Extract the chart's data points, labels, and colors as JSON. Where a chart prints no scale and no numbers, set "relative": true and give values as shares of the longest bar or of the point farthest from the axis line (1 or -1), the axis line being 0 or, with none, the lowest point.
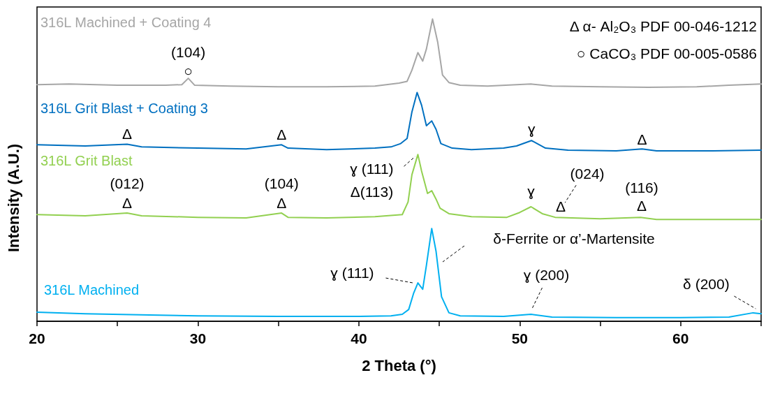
{
  "chart_data": {
    "type": "line",
    "relative": true,
    "marker": "none",
    "xlabel": "2 Theta (°)",
    "ylabel": "Intensity (A.U.)",
    "xlim": [
      20,
      65
    ],
    "xticks": [
      20,
      {
        "value": 25,
        "label": null
      },
      30,
      {
        "value": 35,
        "label": null
      },
      40,
      {
        "value": 45,
        "label": null
      },
      50,
      {
        "value": 55,
        "label": null
      },
      60,
      {
        "value": 65,
        "label": null
      }
    ],
    "series": [
      {
        "name": "316L Machined + Coating 4",
        "color": "#a6a6a6",
        "x": [
          20,
          22,
          25,
          28,
          29,
          29.4,
          29.8,
          32,
          35,
          38,
          41,
          42.5,
          43,
          43.3,
          43.67,
          43.97,
          44.2,
          44.58,
          44.9,
          45.2,
          45.6,
          46.3,
          48,
          50.7,
          52,
          55,
          58,
          61,
          63,
          65
        ],
        "values": [
          0.783,
          0.785,
          0.781,
          0.781,
          0.783,
          0.804,
          0.781,
          0.778,
          0.776,
          0.776,
          0.778,
          0.788,
          0.794,
          0.831,
          0.889,
          0.861,
          0.901,
          1,
          0.924,
          0.815,
          0.79,
          0.781,
          0.778,
          0.785,
          0.778,
          0.776,
          0.774,
          0.776,
          0.781,
          0.785
        ]
      },
      {
        "name": "316L Grit Blast + Coating 3",
        "color": "#0070c0",
        "x": [
          20,
          23,
          25.6,
          26.5,
          30,
          33,
          35.2,
          35.6,
          38,
          41,
          42,
          42.6,
          43,
          43.3,
          43.62,
          43.9,
          44.2,
          44.53,
          44.8,
          45.1,
          45.8,
          47,
          49,
          49.8,
          50.73,
          51.6,
          53,
          56,
          57.6,
          58.5,
          62,
          65
        ],
        "values": [
          0.584,
          0.58,
          0.586,
          0.577,
          0.573,
          0.57,
          0.584,
          0.573,
          0.568,
          0.573,
          0.577,
          0.588,
          0.605,
          0.693,
          0.757,
          0.715,
          0.647,
          0.663,
          0.635,
          0.588,
          0.573,
          0.568,
          0.573,
          0.58,
          0.598,
          0.573,
          0.566,
          0.564,
          0.57,
          0.564,
          0.564,
          0.566
        ]
      },
      {
        "name": "316L Grit Blast",
        "color": "#92d050",
        "x": [
          20,
          23,
          25.6,
          26.5,
          30,
          33,
          35.2,
          35.6,
          38,
          41,
          42.7,
          43.06,
          43.3,
          43.67,
          43.9,
          44.27,
          44.53,
          44.8,
          45.05,
          45.6,
          47,
          49.2,
          50,
          50.7,
          51.4,
          52.2,
          55,
          57.5,
          58.5,
          62,
          65
        ],
        "values": [
          0.353,
          0.349,
          0.358,
          0.349,
          0.344,
          0.342,
          0.358,
          0.344,
          0.342,
          0.346,
          0.353,
          0.395,
          0.485,
          0.552,
          0.497,
          0.423,
          0.432,
          0.404,
          0.374,
          0.356,
          0.346,
          0.344,
          0.36,
          0.379,
          0.356,
          0.344,
          0.339,
          0.344,
          0.337,
          0.337,
          0.337
        ]
      },
      {
        "name": "316L Machined",
        "color": "#00b0f0",
        "x": [
          20,
          23,
          27,
          30,
          35,
          40,
          42,
          42.7,
          43.1,
          43.4,
          43.67,
          43.97,
          44.2,
          44.53,
          44.8,
          45.14,
          45.6,
          46.3,
          49,
          50.7,
          52,
          56,
          60,
          63,
          64.5,
          65
        ],
        "values": [
          0.03,
          0.025,
          0.021,
          0.018,
          0.016,
          0.016,
          0.018,
          0.023,
          0.039,
          0.092,
          0.127,
          0.106,
          0.185,
          0.307,
          0.231,
          0.081,
          0.028,
          0.018,
          0.016,
          0.023,
          0.014,
          0.012,
          0.012,
          0.014,
          0.028,
          0.025
        ]
      }
    ],
    "annotations": [
      "Δ α- Al₂O₃ PDF 00-046-1212",
      "○ CaCO₃ PDF 00-005-0586",
      {
        "text": "○",
        "x": 29.4,
        "y": 0.804
      },
      {
        "text": "(104)",
        "x": 29.4,
        "y": 0.804
      },
      {
        "text": "Δ",
        "x": 25.6,
        "y": 0.586
      },
      {
        "text": "Δ",
        "x": 35.2,
        "y": 0.584
      },
      {
        "text": "ɣ",
        "x": 50.73,
        "y": 0.598
      },
      {
        "text": "Δ",
        "x": 57.6,
        "y": 0.57
      },
      {
        "text": "(012)",
        "x": 25.6,
        "y": 0.358
      },
      {
        "text": "Δ",
        "x": 25.6,
        "y": 0.358
      },
      {
        "text": "(104)",
        "x": 35.2,
        "y": 0.358
      },
      {
        "text": "Δ",
        "x": 35.2,
        "y": 0.358
      },
      {
        "text": "ɣ (111)",
        "x": 43.67,
        "y": 0.552
      },
      {
        "text": "Δ(113)",
        "x": 43.67,
        "y": 0.552
      },
      {
        "text": "ɣ",
        "x": 50.7,
        "y": 0.379
      },
      {
        "text": "Δ",
        "x": 52.55,
        "y": 0.344
      },
      {
        "text": "(024)",
        "x": 52.55,
        "y": 0.344
      },
      {
        "text": "(116)",
        "x": 57.58,
        "y": 0.344
      },
      {
        "text": "Δ",
        "x": 57.58,
        "y": 0.344
      },
      {
        "text": "ɣ (111)",
        "x": 43.67,
        "y": 0.127
      },
      "δ-Ferrite or α’-Martensite",
      {
        "text": "ɣ (200)",
        "x": 50.7,
        "y": 0.023
      },
      {
        "text": "δ (200)",
        "x": 64.8,
        "y": 0.03
      }
    ]
  }
}
